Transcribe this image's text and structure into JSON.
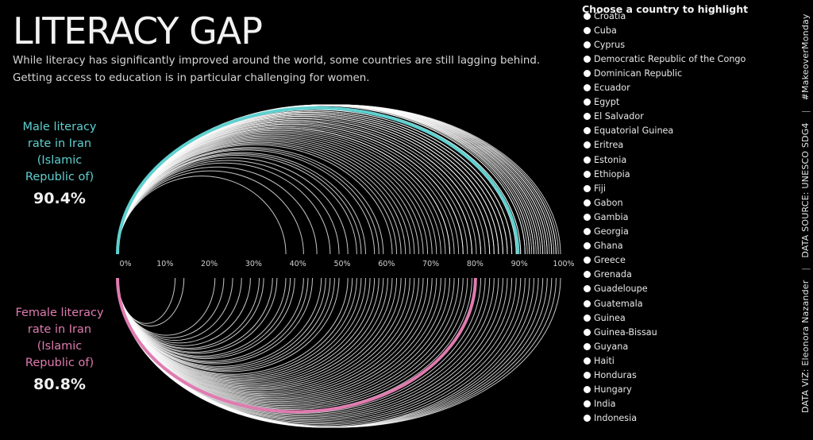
{
  "title": "LITERACY GAP",
  "subtitle": {
    "line1": "While literacy has significantly improved around the world, some countries are still lagging behind.",
    "line2": "Getting access to education is in particular challenging for women."
  },
  "male": {
    "label_lines": [
      "Male literacy",
      "rate in Iran",
      "(Islamic",
      "Republic of)"
    ],
    "value_text": "90.4%"
  },
  "female": {
    "label_lines": [
      "Female literacy",
      "rate in Iran",
      "(Islamic",
      "Republic of)"
    ],
    "value_text": "80.8%"
  },
  "picker": {
    "title": "Choose a country to highlight",
    "options": [
      "Croatia",
      "Cuba",
      "Cyprus",
      "Democratic Republic of the Congo",
      "Dominican Republic",
      "Ecuador",
      "Egypt",
      "El Salvador",
      "Equatorial Guinea",
      "Eritrea",
      "Estonia",
      "Ethiopia",
      "Fiji",
      "Gabon",
      "Gambia",
      "Georgia",
      "Ghana",
      "Greece",
      "Grenada",
      "Guadeloupe",
      "Guatemala",
      "Guinea",
      "Guinea-Bissau",
      "Guyana",
      "Haiti",
      "Honduras",
      "Hungary",
      "India",
      "Indonesia"
    ]
  },
  "credits": {
    "viz": "DATA VIZ: Eleonora Nazander",
    "source": "DATA SOURCE: UNESCO SDG4",
    "tag": "#MakeoverMonday"
  },
  "colors": {
    "male_highlight": "#5fd0cf",
    "female_highlight": "#e07bb0",
    "arc": "#ffffff",
    "background": "#000000"
  },
  "chart_data": {
    "type": "arc",
    "axis_ticks": [
      "0%",
      "10%",
      "20%",
      "30%",
      "40%",
      "50%",
      "60%",
      "70%",
      "80%",
      "90%",
      "100%"
    ],
    "xlim": [
      0,
      100
    ],
    "highlight": {
      "country": "Iran (Islamic Republic of)",
      "male": 90.4,
      "female": 80.8
    },
    "series": [
      {
        "name": "Male literacy rate",
        "values": [
          38,
          42,
          45,
          48,
          50,
          52,
          54,
          55,
          56,
          58,
          59,
          60,
          62,
          63,
          64,
          65,
          66,
          67,
          68,
          69,
          70,
          71,
          72,
          73,
          74,
          75,
          75,
          76,
          77,
          78,
          78,
          79,
          80,
          80,
          81,
          82,
          82,
          83,
          84,
          84,
          85,
          85,
          86,
          86,
          87,
          87,
          88,
          88,
          89,
          89,
          90,
          90,
          90.4,
          91,
          91,
          92,
          92,
          92.5,
          93,
          93,
          93.5,
          94,
          94,
          94.5,
          95,
          95,
          95.5,
          96,
          96,
          96.5,
          97,
          97,
          97.5,
          98,
          98,
          98.5,
          99,
          99,
          99.5,
          100
        ]
      },
      {
        "name": "Female literacy rate",
        "values": [
          13,
          15,
          22,
          24,
          26,
          28,
          30,
          32,
          33,
          35,
          36,
          38,
          39,
          40,
          42,
          43,
          44,
          46,
          47,
          48,
          49,
          50,
          52,
          53,
          54,
          55,
          56,
          57,
          58,
          59,
          60,
          61,
          62,
          63,
          64,
          65,
          66,
          67,
          68,
          69,
          70,
          71,
          72,
          73,
          74,
          75,
          76,
          77,
          78,
          79,
          80,
          80.8,
          81,
          82,
          83,
          84,
          85,
          86,
          87,
          88,
          89,
          90,
          91,
          92,
          93,
          94,
          95,
          96,
          97,
          98,
          99,
          100
        ]
      }
    ]
  }
}
